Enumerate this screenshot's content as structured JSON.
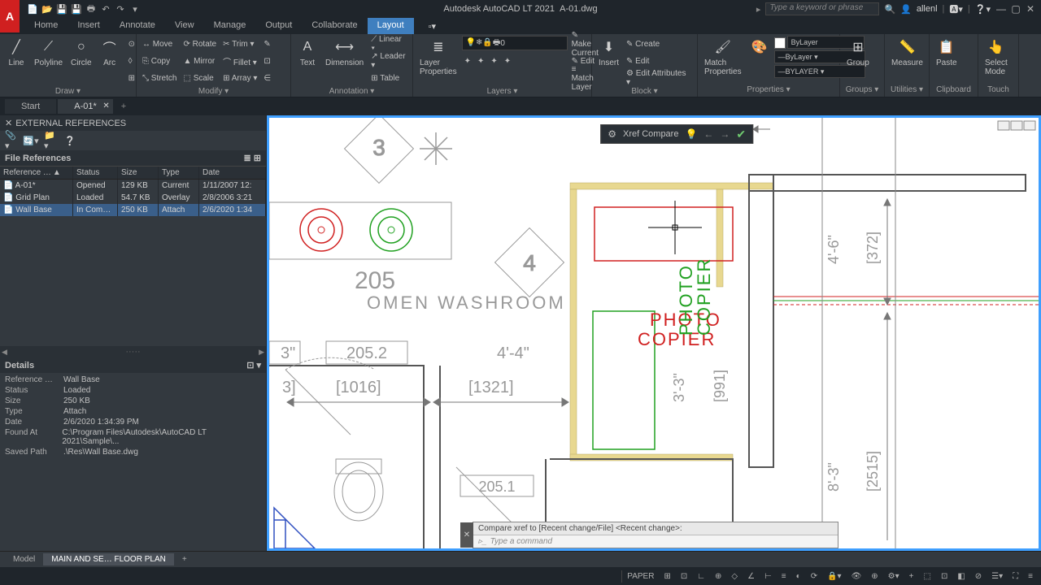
{
  "title": {
    "app": "Autodesk AutoCAD LT 2021",
    "file": "A-01.dwg"
  },
  "search_placeholder": "Type a keyword or phrase",
  "user": "allenl",
  "menu_tabs": [
    "Home",
    "Insert",
    "Annotate",
    "View",
    "Manage",
    "Output",
    "Collaborate",
    "Layout"
  ],
  "active_tab": "Layout",
  "ribbon": {
    "draw": {
      "title": "Draw ▾",
      "items": [
        "Line",
        "Polyline",
        "Circle",
        "Arc"
      ]
    },
    "modify": {
      "title": "Modify ▾",
      "rows": [
        [
          "↔ Move",
          "⟳ Rotate",
          "✂ Trim ▾"
        ],
        [
          "⎘ Copy",
          "▲ Mirror",
          "⌒ Fillet ▾"
        ],
        [
          "⤡ Stretch",
          "⬚ Scale",
          "⊞ Array ▾"
        ]
      ]
    },
    "annotation": {
      "title": "Annotation ▾",
      "text": "Text",
      "dim": "Dimension",
      "rows": [
        "⟋ Linear ▾",
        "↗ Leader ▾",
        "⊞ Table"
      ]
    },
    "layers": {
      "title": "Layers ▾",
      "btn": "Layer\nProperties",
      "current": "0",
      "rows": [
        "✎ Make Current",
        "✎ Edit",
        "≡ Match Layer"
      ]
    },
    "block": {
      "title": "Block ▾",
      "insert": "Insert",
      "rows": [
        "✎ Create",
        "✎ Edit",
        "⚙ Edit Attributes ▾"
      ]
    },
    "properties": {
      "title": "Properties ▾",
      "match": "Match\nProperties",
      "dd": [
        "ByLayer",
        "ByLayer ▾",
        "BYLAYER ▾"
      ]
    },
    "groups": {
      "title": "Groups ▾",
      "btn": "Group"
    },
    "utilities": {
      "title": "Utilities ▾",
      "btn": "Measure"
    },
    "clipboard": {
      "title": "Clipboard",
      "btn": "Paste"
    },
    "touch": {
      "title": "Touch",
      "btn": "Select\nMode"
    }
  },
  "doc_tabs": {
    "start": "Start",
    "active": "A-01*"
  },
  "ext_refs": {
    "title": "EXTERNAL REFERENCES",
    "section": "File References",
    "columns": [
      "Reference …",
      "Status",
      "Size",
      "Type",
      "Date"
    ],
    "rows": [
      {
        "icon": "📄",
        "name": "A-01*",
        "status": "Opened",
        "size": "129 KB",
        "type": "Current",
        "date": "1/11/2007 12:",
        "selected": false
      },
      {
        "icon": "📄",
        "name": "Grid Plan",
        "status": "Loaded",
        "size": "54.7 KB",
        "type": "Overlay",
        "date": "2/8/2006 3:21",
        "selected": false
      },
      {
        "icon": "📄",
        "name": "Wall Base",
        "status": "In Com…",
        "size": "250 KB",
        "type": "Attach",
        "date": "2/6/2020 1:34",
        "selected": true
      }
    ],
    "details_title": "Details",
    "details": [
      {
        "k": "Reference …",
        "v": "Wall Base"
      },
      {
        "k": "Status",
        "v": "Loaded"
      },
      {
        "k": "Size",
        "v": "250 KB"
      },
      {
        "k": "Type",
        "v": "Attach"
      },
      {
        "k": "Date",
        "v": "2/6/2020 1:34:39 PM"
      },
      {
        "k": "Found At",
        "v": "C:\\Program Files\\Autodesk\\AutoCAD LT 2021\\Sample\\..."
      },
      {
        "k": "Saved Path",
        "v": ".\\Res\\Wall Base.dwg"
      }
    ]
  },
  "xref_compare": "Xref Compare",
  "cmd": {
    "hist": "Compare xref to [Recent change/File] <Recent change>:",
    "prompt": "Type a command"
  },
  "layout_tabs": {
    "model": "Model",
    "active": "MAIN AND SE… FLOOR PLAN"
  },
  "status": {
    "paper": "PAPER"
  },
  "drawing": {
    "room_number": "205",
    "room_name": "OMEN WASHROOM",
    "dim_4_4": "4'-4\"",
    "dim_1016": "[1016]",
    "dim_1321": "[1321]",
    "dim_205_2": "205.2",
    "dim_205_1": "205.1",
    "dim_3": "3\"",
    "dim_3_3": "3'-3\"",
    "dim_991": "[991]",
    "dim_4_6": "4'-6\"",
    "dim_372": "[372]",
    "dim_8_3": "8'-3\"",
    "dim_2515": "[2515]",
    "photo_copier1": "PHOTO",
    "photo_copier2": "COPIER",
    "colors": {
      "wall": "#888888",
      "wall_fill": "#e8d890",
      "red": "#d02020",
      "green": "#20a020",
      "text_gray": "#999999",
      "dim_gray": "#777777",
      "blue": "#3050c0"
    }
  }
}
